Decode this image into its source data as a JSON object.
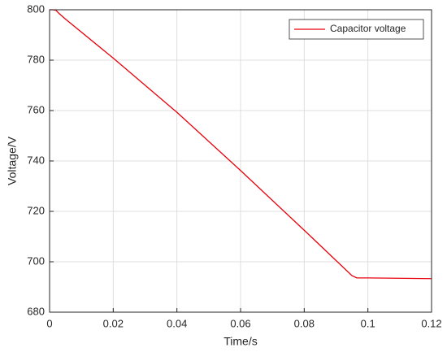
{
  "chart_data": {
    "type": "line",
    "x_label": "Time/s",
    "y_label": "Voltage/V",
    "x": [
      0,
      0.001,
      0.002,
      0.003,
      0.005,
      0.02,
      0.04,
      0.06,
      0.08,
      0.095,
      0.0965,
      0.1,
      0.12
    ],
    "series": [
      {
        "name": "Capacitor voltage",
        "color": "#e8000b",
        "values": [
          800,
          800,
          799.8,
          798.5,
          796.3,
          780.8,
          759.3,
          736.2,
          712.5,
          694.5,
          693.6,
          693.6,
          693.3
        ]
      }
    ],
    "xlim": [
      0,
      0.12
    ],
    "xticks": [
      0,
      0.02,
      0.04,
      0.06,
      0.08,
      0.1,
      0.12
    ],
    "ylim": [
      680,
      800
    ],
    "yticks": [
      680,
      700,
      720,
      740,
      760,
      780,
      800
    ],
    "grid": true,
    "legend": "upper right"
  }
}
